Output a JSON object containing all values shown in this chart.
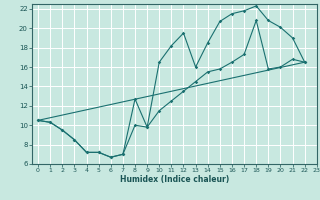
{
  "xlabel": "Humidex (Indice chaleur)",
  "xlim": [
    -0.5,
    23
  ],
  "ylim": [
    6,
    22.5
  ],
  "yticks": [
    6,
    8,
    10,
    12,
    14,
    16,
    18,
    20,
    22
  ],
  "xticks": [
    0,
    1,
    2,
    3,
    4,
    5,
    6,
    7,
    8,
    9,
    10,
    11,
    12,
    13,
    14,
    15,
    16,
    17,
    18,
    19,
    20,
    21,
    22,
    23
  ],
  "bg_color": "#c8e8e0",
  "grid_color": "#ffffff",
  "line_color": "#1a7070",
  "line1_x": [
    0,
    1,
    2,
    3,
    4,
    5,
    6,
    7,
    8,
    9,
    10,
    11,
    12,
    13,
    14,
    15,
    16,
    17,
    18,
    19,
    20,
    21,
    22
  ],
  "line1_y": [
    10.5,
    10.3,
    9.5,
    8.5,
    7.2,
    7.2,
    6.7,
    7.0,
    12.7,
    9.8,
    16.5,
    18.2,
    19.5,
    16.0,
    18.5,
    20.7,
    21.5,
    21.8,
    22.3,
    20.8,
    20.1,
    19.0,
    16.5
  ],
  "line2_x": [
    0,
    22
  ],
  "line2_y": [
    10.5,
    16.5
  ],
  "line3_x": [
    0,
    1,
    2,
    3,
    4,
    5,
    6,
    7,
    8,
    9,
    10,
    11,
    12,
    13,
    14,
    15,
    16,
    17,
    18,
    19,
    20,
    21,
    22
  ],
  "line3_y": [
    10.5,
    10.3,
    9.5,
    8.5,
    7.2,
    7.2,
    6.7,
    7.0,
    10.0,
    9.8,
    11.5,
    12.5,
    13.5,
    14.5,
    15.5,
    15.8,
    16.5,
    17.3,
    20.8,
    15.8,
    16.0,
    16.8,
    16.5
  ]
}
